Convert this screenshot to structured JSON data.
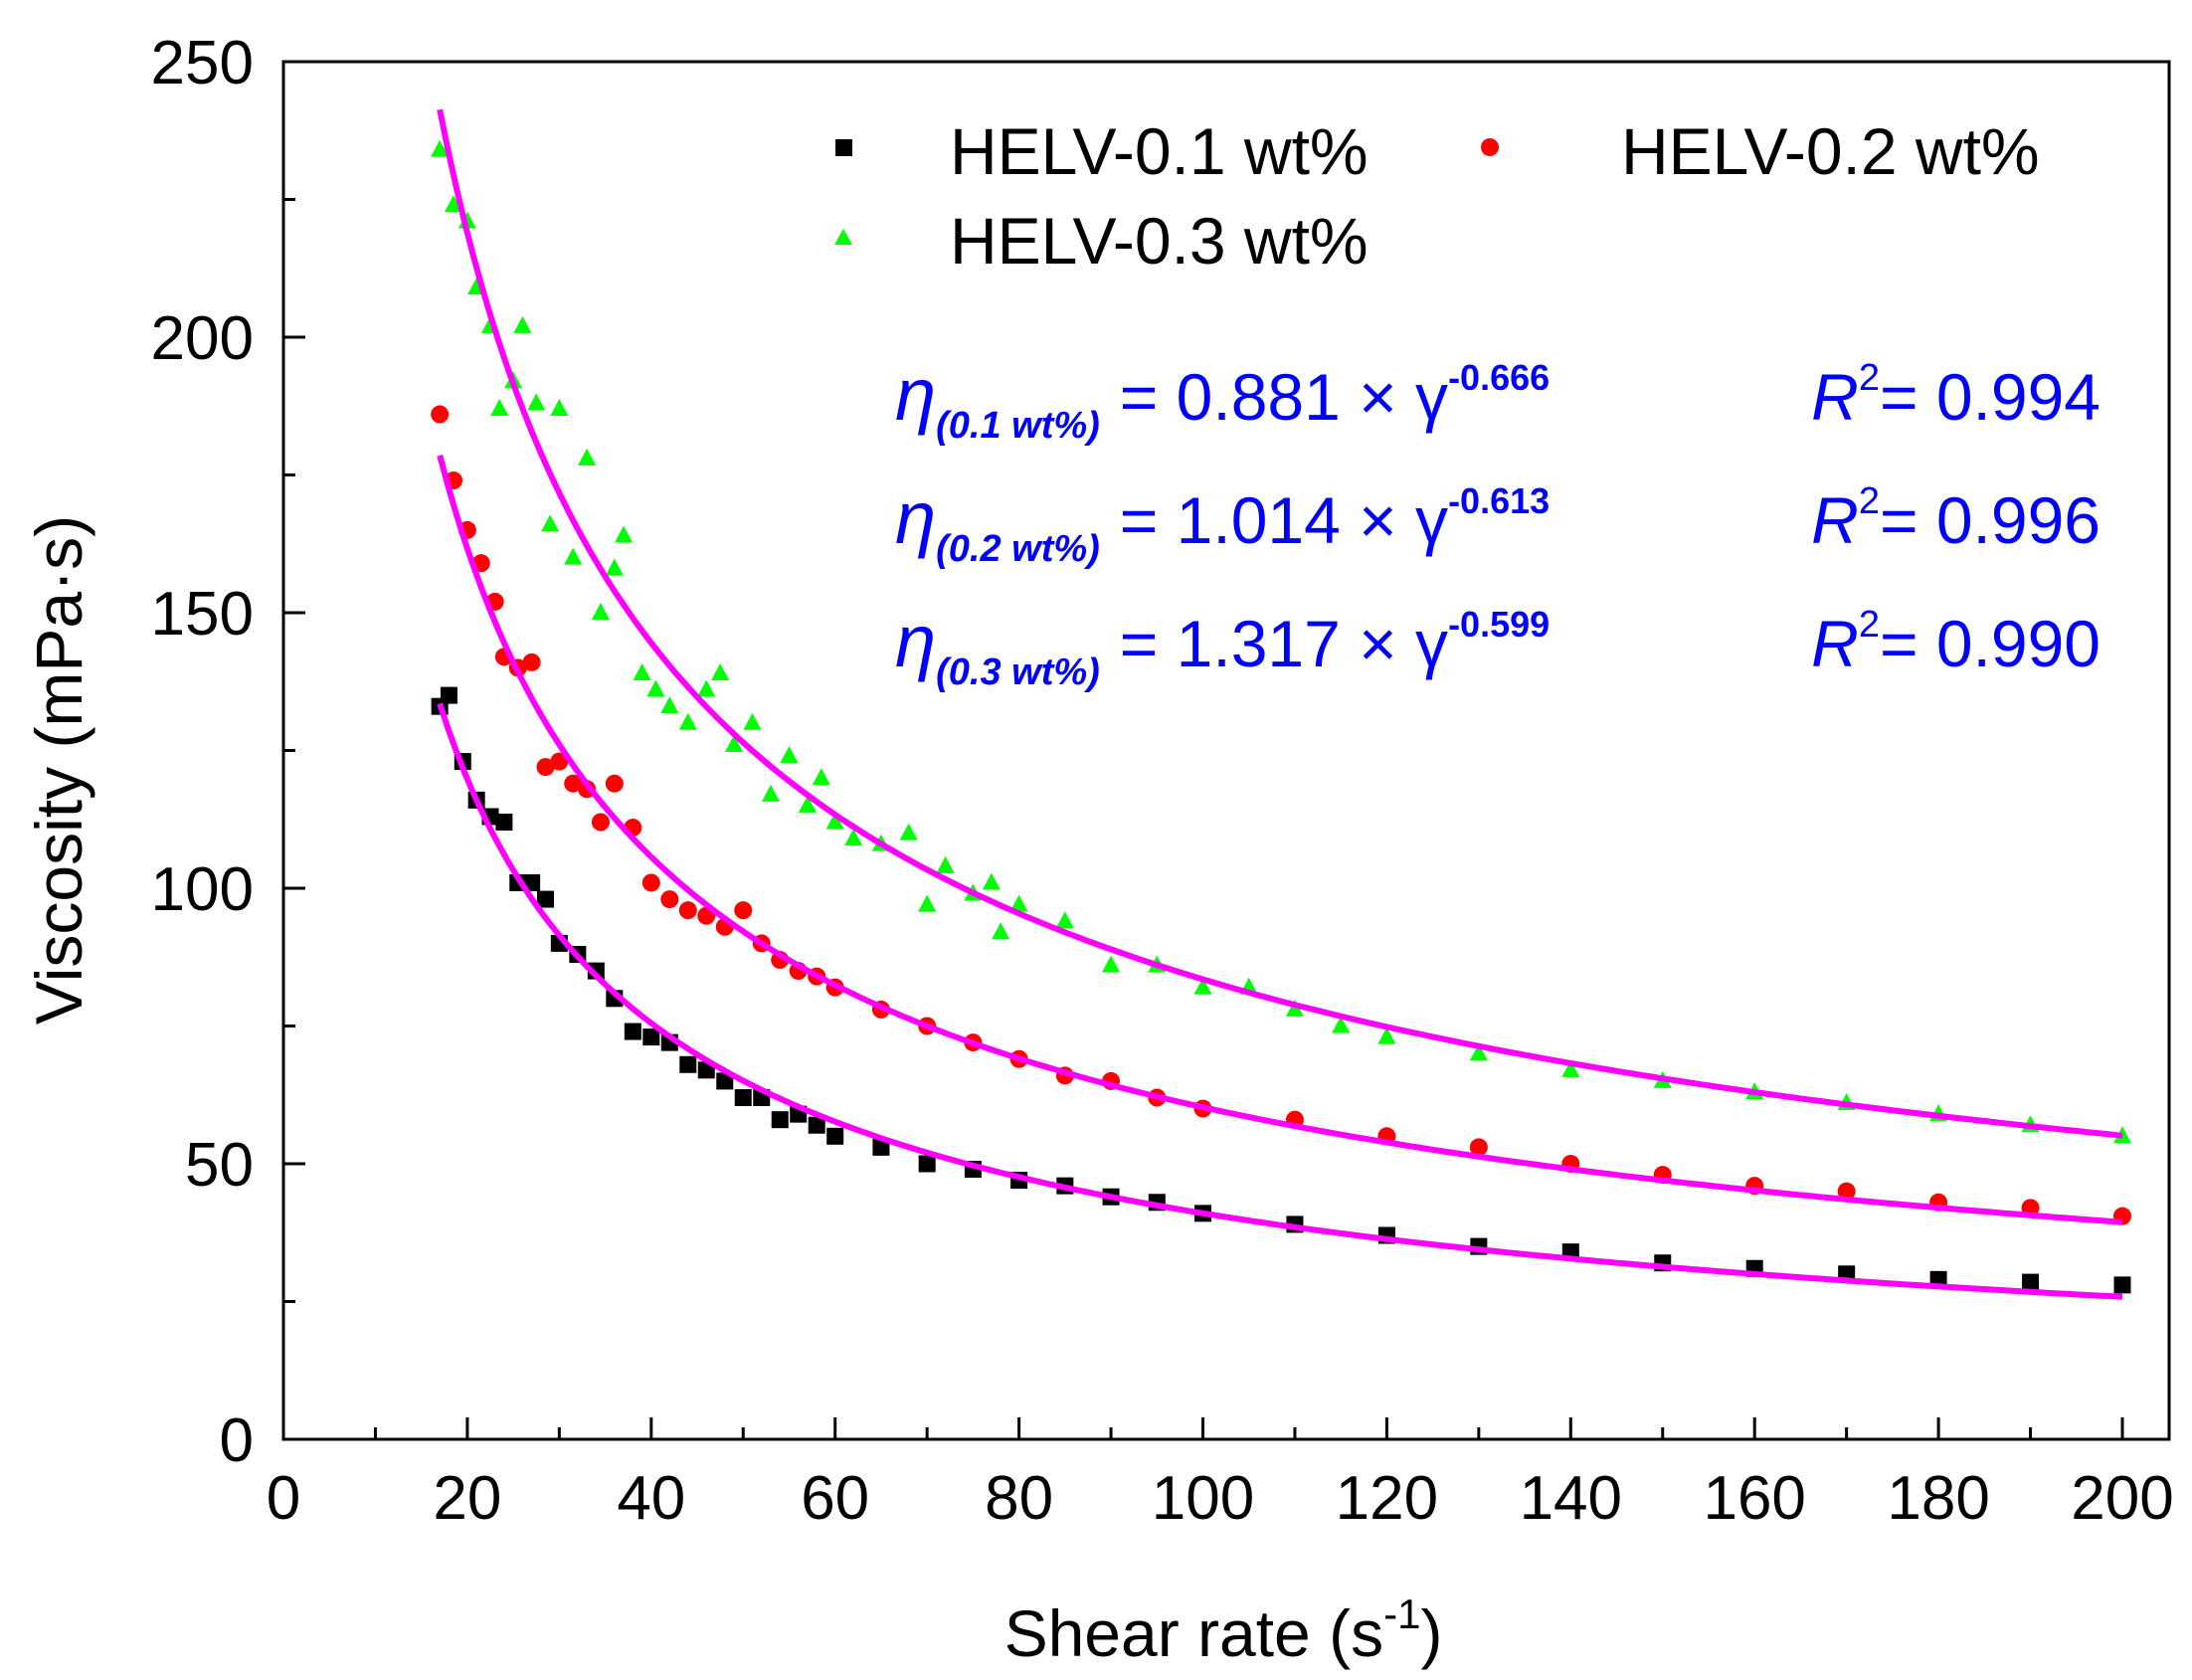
{
  "chart_data": {
    "type": "scatter",
    "xlabel": "Shear rate (s",
    "xlabel_superscript": "-1",
    "xlabel_suffix": ")",
    "ylabel": "Viscosity (mPa·s)",
    "xlim": [
      0,
      205
    ],
    "ylim": [
      0,
      250
    ],
    "xticks": [
      0,
      20,
      40,
      60,
      80,
      100,
      120,
      140,
      160,
      180,
      200
    ],
    "yticks": [
      0,
      50,
      100,
      150,
      200,
      250
    ],
    "grid": false,
    "legend_position": "top-right",
    "fit_color": "#ff00ff",
    "series": [
      {
        "name": "HELV-0.1 wt%",
        "marker": "square",
        "color": "#000000",
        "x_range": [
          17,
          200
        ],
        "points": [
          [
            17,
            133
          ],
          [
            18,
            135
          ],
          [
            19.5,
            123
          ],
          [
            21,
            116
          ],
          [
            22.5,
            113
          ],
          [
            24,
            112
          ],
          [
            25.5,
            101
          ],
          [
            27,
            101
          ],
          [
            28.5,
            98
          ],
          [
            30,
            90
          ],
          [
            32,
            88
          ],
          [
            34,
            85
          ],
          [
            36,
            80
          ],
          [
            38,
            74
          ],
          [
            40,
            73
          ],
          [
            42,
            72
          ],
          [
            44,
            68
          ],
          [
            46,
            67
          ],
          [
            48,
            65
          ],
          [
            50,
            62
          ],
          [
            52,
            62
          ],
          [
            54,
            58
          ],
          [
            56,
            59
          ],
          [
            58,
            57
          ],
          [
            60,
            55
          ],
          [
            65,
            53
          ],
          [
            70,
            50
          ],
          [
            75,
            49
          ],
          [
            80,
            47
          ],
          [
            85,
            46
          ],
          [
            90,
            44
          ],
          [
            95,
            43
          ],
          [
            100,
            41
          ],
          [
            110,
            39
          ],
          [
            120,
            37
          ],
          [
            130,
            35
          ],
          [
            140,
            34
          ],
          [
            150,
            32
          ],
          [
            160,
            31
          ],
          [
            170,
            30
          ],
          [
            180,
            29
          ],
          [
            190,
            28.5
          ],
          [
            200,
            28
          ]
        ],
        "fit": {
          "a": 0.881,
          "b": -0.666,
          "r2": "0.994"
        }
      },
      {
        "name": "HELV-0.2 wt%",
        "marker": "circle",
        "color": "#ff0000",
        "x_range": [
          17,
          200
        ],
        "points": [
          [
            17,
            186
          ],
          [
            18.5,
            174
          ],
          [
            20,
            165
          ],
          [
            21.5,
            159
          ],
          [
            23,
            152
          ],
          [
            24,
            142
          ],
          [
            25.5,
            140
          ],
          [
            27,
            141
          ],
          [
            28.5,
            122
          ],
          [
            30,
            123
          ],
          [
            31.5,
            119
          ],
          [
            33,
            118
          ],
          [
            34.5,
            112
          ],
          [
            36,
            119
          ],
          [
            38,
            111
          ],
          [
            40,
            101
          ],
          [
            42,
            98
          ],
          [
            44,
            96
          ],
          [
            46,
            95
          ],
          [
            48,
            93
          ],
          [
            50,
            96
          ],
          [
            52,
            90
          ],
          [
            54,
            87
          ],
          [
            56,
            85
          ],
          [
            58,
            84
          ],
          [
            60,
            82
          ],
          [
            65,
            78
          ],
          [
            70,
            75
          ],
          [
            75,
            72
          ],
          [
            80,
            69
          ],
          [
            85,
            66
          ],
          [
            90,
            65
          ],
          [
            95,
            62
          ],
          [
            100,
            60
          ],
          [
            110,
            58
          ],
          [
            120,
            55
          ],
          [
            130,
            53
          ],
          [
            140,
            50
          ],
          [
            150,
            48
          ],
          [
            160,
            46
          ],
          [
            170,
            45
          ],
          [
            180,
            43
          ],
          [
            190,
            42
          ],
          [
            200,
            40.5
          ]
        ],
        "fit": {
          "a": 1.014,
          "b": -0.613,
          "r2": "0.996"
        }
      },
      {
        "name": "HELV-0.3 wt%",
        "marker": "triangle",
        "color": "#00ff00",
        "x_range": [
          17,
          200
        ],
        "points": [
          [
            17,
            234
          ],
          [
            18.5,
            224
          ],
          [
            20,
            221
          ],
          [
            21,
            209
          ],
          [
            22.5,
            202
          ],
          [
            23.5,
            187
          ],
          [
            25,
            192
          ],
          [
            26,
            202
          ],
          [
            27.5,
            188
          ],
          [
            29,
            166
          ],
          [
            30,
            187
          ],
          [
            31.5,
            160
          ],
          [
            33,
            178
          ],
          [
            34.5,
            150
          ],
          [
            36,
            158
          ],
          [
            37,
            164
          ],
          [
            39,
            139
          ],
          [
            40.5,
            136
          ],
          [
            42,
            133
          ],
          [
            44,
            130
          ],
          [
            46,
            136
          ],
          [
            47.5,
            139
          ],
          [
            49,
            126
          ],
          [
            51,
            130
          ],
          [
            53,
            117
          ],
          [
            55,
            124
          ],
          [
            57,
            115
          ],
          [
            58.5,
            120
          ],
          [
            60,
            112
          ],
          [
            62,
            109
          ],
          [
            65,
            108
          ],
          [
            68,
            110
          ],
          [
            70,
            97
          ],
          [
            72,
            104
          ],
          [
            75,
            99
          ],
          [
            77,
            101
          ],
          [
            78,
            92
          ],
          [
            80,
            97
          ],
          [
            85,
            94
          ],
          [
            90,
            86
          ],
          [
            95,
            86
          ],
          [
            100,
            82
          ],
          [
            105,
            82
          ],
          [
            110,
            78
          ],
          [
            115,
            75
          ],
          [
            120,
            73
          ],
          [
            130,
            70
          ],
          [
            140,
            67
          ],
          [
            150,
            65
          ],
          [
            160,
            63
          ],
          [
            170,
            61
          ],
          [
            180,
            59
          ],
          [
            190,
            57
          ],
          [
            200,
            55
          ]
        ],
        "fit": {
          "a": 1.317,
          "b": -0.599,
          "r2": "0.990"
        }
      }
    ],
    "annotations": [
      {
        "eta": "η",
        "subscript": "(0.1 wt%)",
        "equals": "= 0.881 × γ",
        "exponent": "-0.666",
        "r_letter": "R",
        "r_power": "2",
        "r_value": "= 0.994"
      },
      {
        "eta": "η",
        "subscript": "(0.2 wt%)",
        "equals": "= 1.014 × γ",
        "exponent": "-0.613",
        "r_letter": "R",
        "r_power": "2",
        "r_value": "= 0.996"
      },
      {
        "eta": "η",
        "subscript": "(0.3 wt%)",
        "equals": "= 1.317 × γ",
        "exponent": "-0.599",
        "r_letter": "R",
        "r_power": "2",
        "r_value": "= 0.990"
      }
    ]
  }
}
